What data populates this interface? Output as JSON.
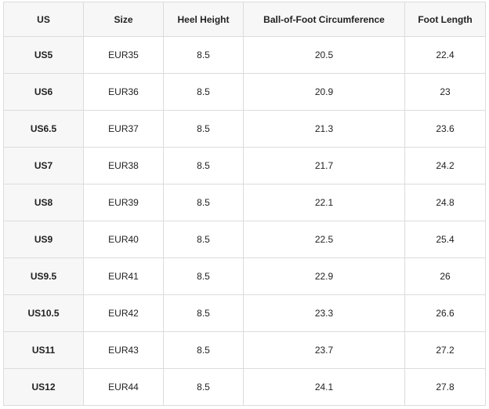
{
  "table": {
    "header": [
      "US",
      "Size",
      "Heel Height",
      "Ball-of-Foot Circumference",
      "Foot Length"
    ],
    "rows": [
      [
        "US5",
        "EUR35",
        8.5,
        20.5,
        22.4
      ],
      [
        "US6",
        "EUR36",
        8.5,
        20.9,
        23
      ],
      [
        "US6.5",
        "EUR37",
        8.5,
        21.3,
        23.6
      ],
      [
        "US7",
        "EUR38",
        8.5,
        21.7,
        24.2
      ],
      [
        "US8",
        "EUR39",
        8.5,
        22.1,
        24.8
      ],
      [
        "US9",
        "EUR40",
        8.5,
        22.5,
        25.4
      ],
      [
        "US9.5",
        "EUR41",
        8.5,
        22.9,
        26
      ],
      [
        "US10.5",
        "EUR42",
        8.5,
        23.3,
        26.6
      ],
      [
        "US11",
        "EUR43",
        8.5,
        23.7,
        27.2
      ],
      [
        "US12",
        "EUR44",
        8.5,
        24.1,
        27.8
      ]
    ]
  }
}
